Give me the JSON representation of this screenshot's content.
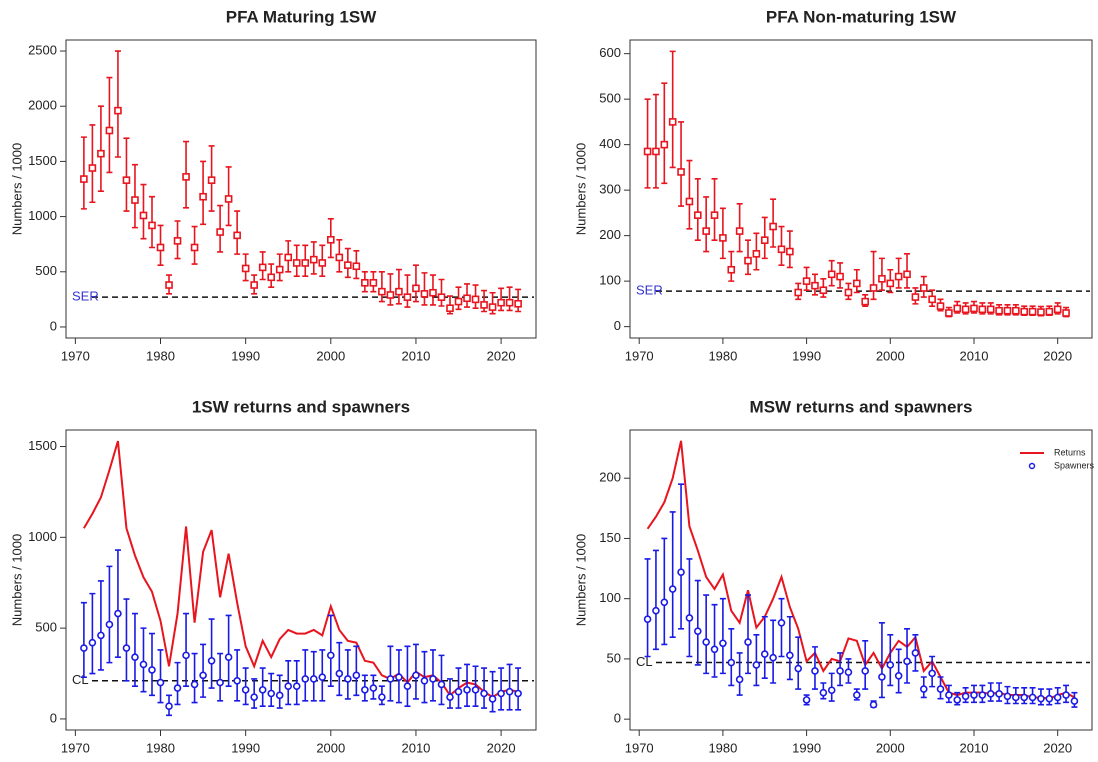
{
  "chart_data": [
    {
      "type": "errorbar",
      "title": "PFA Maturing 1SW",
      "ylabel": "Numbers / 1000",
      "x": [
        1971,
        1972,
        1973,
        1974,
        1975,
        1976,
        1977,
        1978,
        1979,
        1980,
        1981,
        1982,
        1983,
        1984,
        1985,
        1986,
        1987,
        1988,
        1989,
        1990,
        1991,
        1992,
        1993,
        1994,
        1995,
        1996,
        1997,
        1998,
        1999,
        2000,
        2001,
        2002,
        2003,
        2004,
        2005,
        2006,
        2007,
        2008,
        2009,
        2010,
        2011,
        2012,
        2013,
        2014,
        2015,
        2016,
        2017,
        2018,
        2019,
        2020,
        2021,
        2022
      ],
      "xlim": [
        1968.9,
        2024.1
      ],
      "xticks": [
        1970,
        1980,
        1990,
        2000,
        2010,
        2020
      ],
      "ylim": [
        -100,
        2600
      ],
      "yticks": [
        0,
        500,
        1000,
        1500,
        2000,
        2500
      ],
      "reference": {
        "label": "SER",
        "value": 270,
        "label_color": "#3333cc"
      },
      "series": [
        {
          "kind": "errorbar",
          "marker": "square",
          "color": "#e8141e",
          "values": [
            1340,
            1440,
            1570,
            1780,
            1960,
            1330,
            1150,
            1010,
            920,
            720,
            380,
            780,
            1360,
            720,
            1180,
            1330,
            860,
            1160,
            830,
            530,
            380,
            540,
            450,
            520,
            630,
            580,
            580,
            610,
            580,
            790,
            630,
            560,
            550,
            400,
            400,
            320,
            290,
            320,
            270,
            350,
            300,
            310,
            270,
            170,
            230,
            260,
            250,
            200,
            180,
            220,
            220,
            210
          ],
          "lower": [
            1070,
            1130,
            1230,
            1400,
            1540,
            1050,
            900,
            800,
            720,
            560,
            300,
            620,
            1080,
            570,
            930,
            1050,
            680,
            920,
            660,
            420,
            300,
            430,
            360,
            420,
            500,
            460,
            460,
            480,
            460,
            630,
            500,
            450,
            440,
            320,
            320,
            230,
            200,
            210,
            180,
            230,
            200,
            200,
            190,
            120,
            160,
            180,
            170,
            140,
            120,
            150,
            150,
            140
          ],
          "upper": [
            1720,
            1830,
            2000,
            2260,
            2500,
            1710,
            1470,
            1290,
            1180,
            920,
            470,
            960,
            1680,
            910,
            1500,
            1640,
            1100,
            1450,
            1050,
            660,
            470,
            680,
            570,
            660,
            780,
            740,
            740,
            770,
            740,
            980,
            790,
            710,
            690,
            500,
            500,
            500,
            480,
            520,
            470,
            560,
            490,
            470,
            430,
            280,
            360,
            390,
            380,
            330,
            310,
            350,
            360,
            340
          ]
        }
      ]
    },
    {
      "type": "errorbar",
      "title": "PFA Non-maturing 1SW",
      "ylabel": "Numbers / 1000",
      "x": [
        1971,
        1972,
        1973,
        1974,
        1975,
        1976,
        1977,
        1978,
        1979,
        1980,
        1981,
        1982,
        1983,
        1984,
        1985,
        1986,
        1987,
        1988,
        1989,
        1990,
        1991,
        1992,
        1993,
        1994,
        1995,
        1996,
        1997,
        1998,
        1999,
        2000,
        2001,
        2002,
        2003,
        2004,
        2005,
        2006,
        2007,
        2008,
        2009,
        2010,
        2011,
        2012,
        2013,
        2014,
        2015,
        2016,
        2017,
        2018,
        2019,
        2020,
        2021
      ],
      "xlim": [
        1968.9,
        2024.1
      ],
      "xticks": [
        1970,
        1980,
        1990,
        2000,
        2010,
        2020
      ],
      "ylim": [
        -25,
        630
      ],
      "yticks": [
        0,
        100,
        200,
        300,
        400,
        500,
        600
      ],
      "reference": {
        "label": "SER",
        "value": 78,
        "label_color": "#3333cc"
      },
      "series": [
        {
          "kind": "errorbar",
          "marker": "square",
          "color": "#e8141e",
          "values": [
            385,
            385,
            400,
            450,
            340,
            275,
            245,
            210,
            245,
            195,
            125,
            210,
            145,
            160,
            190,
            220,
            170,
            165,
            75,
            100,
            90,
            80,
            115,
            110,
            75,
            95,
            55,
            85,
            105,
            95,
            110,
            115,
            65,
            85,
            60,
            45,
            30,
            40,
            38,
            40,
            38,
            38,
            35,
            35,
            35,
            33,
            33,
            32,
            33,
            38,
            30
          ],
          "lower": [
            305,
            305,
            315,
            350,
            265,
            215,
            190,
            165,
            190,
            150,
            100,
            165,
            115,
            125,
            150,
            175,
            135,
            130,
            60,
            80,
            70,
            65,
            90,
            85,
            60,
            75,
            45,
            60,
            80,
            75,
            85,
            85,
            50,
            65,
            45,
            35,
            22,
            30,
            28,
            30,
            28,
            28,
            26,
            26,
            26,
            25,
            25,
            24,
            25,
            28,
            22
          ],
          "upper": [
            500,
            510,
            535,
            605,
            450,
            365,
            325,
            285,
            325,
            260,
            165,
            270,
            190,
            205,
            240,
            280,
            220,
            210,
            95,
            130,
            115,
            105,
            145,
            140,
            95,
            125,
            70,
            165,
            150,
            125,
            150,
            160,
            85,
            110,
            80,
            60,
            42,
            55,
            52,
            55,
            52,
            52,
            48,
            48,
            48,
            45,
            45,
            44,
            45,
            52,
            42
          ]
        }
      ]
    },
    {
      "type": "line_errorbar",
      "title": "1SW returns and spawners",
      "ylabel": "Numbers / 1000",
      "x": [
        1971,
        1972,
        1973,
        1974,
        1975,
        1976,
        1977,
        1978,
        1979,
        1980,
        1981,
        1982,
        1983,
        1984,
        1985,
        1986,
        1987,
        1988,
        1989,
        1990,
        1991,
        1992,
        1993,
        1994,
        1995,
        1996,
        1997,
        1998,
        1999,
        2000,
        2001,
        2002,
        2003,
        2004,
        2005,
        2006,
        2007,
        2008,
        2009,
        2010,
        2011,
        2012,
        2013,
        2014,
        2015,
        2016,
        2017,
        2018,
        2019,
        2020,
        2021,
        2022
      ],
      "xlim": [
        1968.9,
        2024.1
      ],
      "xticks": [
        1970,
        1980,
        1990,
        2000,
        2010,
        2020
      ],
      "ylim": [
        -61,
        1591
      ],
      "yticks": [
        0,
        500,
        1000,
        1500
      ],
      "reference": {
        "label": "CL",
        "value": 210,
        "label_color": "#222222"
      },
      "series": [
        {
          "kind": "line",
          "color": "#e8141e",
          "values": [
            1050,
            1130,
            1220,
            1370,
            1530,
            1050,
            900,
            780,
            700,
            540,
            290,
            580,
            1060,
            530,
            920,
            1040,
            670,
            910,
            640,
            400,
            290,
            430,
            340,
            440,
            490,
            470,
            470,
            490,
            460,
            620,
            490,
            430,
            420,
            320,
            310,
            240,
            220,
            250,
            200,
            260,
            230,
            240,
            200,
            130,
            170,
            200,
            190,
            150,
            120,
            150,
            160,
            150
          ]
        },
        {
          "kind": "errorbar",
          "marker": "circle",
          "color": "#1a1ae6",
          "values": [
            390,
            420,
            460,
            520,
            580,
            390,
            340,
            300,
            270,
            200,
            70,
            170,
            350,
            190,
            240,
            320,
            200,
            340,
            210,
            160,
            120,
            160,
            140,
            130,
            180,
            180,
            220,
            220,
            230,
            350,
            250,
            220,
            240,
            160,
            170,
            120,
            220,
            230,
            180,
            240,
            210,
            220,
            190,
            120,
            150,
            160,
            160,
            140,
            110,
            140,
            150,
            140
          ],
          "lower": [
            230,
            250,
            270,
            310,
            340,
            210,
            180,
            150,
            130,
            90,
            20,
            80,
            180,
            90,
            120,
            170,
            100,
            180,
            100,
            80,
            60,
            70,
            70,
            60,
            80,
            80,
            100,
            100,
            100,
            180,
            130,
            110,
            130,
            100,
            110,
            80,
            100,
            90,
            70,
            110,
            90,
            100,
            80,
            60,
            60,
            70,
            70,
            60,
            40,
            50,
            50,
            50
          ],
          "upper": [
            640,
            690,
            760,
            840,
            930,
            660,
            580,
            500,
            470,
            380,
            130,
            310,
            580,
            360,
            410,
            550,
            360,
            570,
            380,
            280,
            220,
            280,
            250,
            240,
            320,
            320,
            380,
            370,
            380,
            570,
            420,
            380,
            400,
            240,
            240,
            180,
            400,
            380,
            400,
            410,
            370,
            380,
            350,
            220,
            280,
            300,
            290,
            280,
            260,
            280,
            300,
            280
          ]
        }
      ]
    },
    {
      "type": "line_errorbar",
      "title": "MSW returns and spawners",
      "ylabel": "Numbers / 1000",
      "x": [
        1971,
        1972,
        1973,
        1974,
        1975,
        1976,
        1977,
        1978,
        1979,
        1980,
        1981,
        1982,
        1983,
        1984,
        1985,
        1986,
        1987,
        1988,
        1989,
        1990,
        1991,
        1992,
        1993,
        1994,
        1995,
        1996,
        1997,
        1998,
        1999,
        2000,
        2001,
        2002,
        2003,
        2004,
        2005,
        2006,
        2007,
        2008,
        2009,
        2010,
        2011,
        2012,
        2013,
        2014,
        2015,
        2016,
        2017,
        2018,
        2019,
        2020,
        2021,
        2022
      ],
      "xlim": [
        1968.9,
        2024.1
      ],
      "xticks": [
        1970,
        1980,
        1990,
        2000,
        2010,
        2020
      ],
      "ylim": [
        -9,
        240
      ],
      "yticks": [
        0,
        50,
        100,
        150,
        200
      ],
      "reference": {
        "label": "CL",
        "value": 47,
        "label_color": "#222222"
      },
      "series": [
        {
          "name": "Returns",
          "kind": "line",
          "color": "#e8141e",
          "values": [
            158,
            168,
            180,
            200,
            231,
            160,
            140,
            118,
            108,
            120,
            90,
            80,
            107,
            76,
            85,
            100,
            118,
            93,
            75,
            48,
            55,
            40,
            50,
            48,
            67,
            65,
            45,
            55,
            42,
            55,
            65,
            60,
            68,
            40,
            48,
            35,
            22,
            20,
            22,
            22,
            22,
            21,
            22,
            20,
            20,
            20,
            18,
            18,
            17,
            20,
            22,
            18
          ]
        },
        {
          "name": "Spawners",
          "kind": "errorbar",
          "marker": "circle",
          "color": "#1a1ae6",
          "values": [
            83,
            90,
            97,
            108,
            122,
            84,
            73,
            64,
            58,
            63,
            47,
            33,
            64,
            45,
            54,
            51,
            80,
            53,
            42,
            16,
            40,
            22,
            24,
            40,
            39,
            20,
            40,
            12,
            35,
            45,
            36,
            48,
            55,
            25,
            38,
            25,
            20,
            16,
            19,
            20,
            20,
            21,
            21,
            19,
            18,
            18,
            18,
            17,
            17,
            18,
            20,
            15
          ],
          "lower": [
            52,
            58,
            62,
            68,
            75,
            52,
            45,
            38,
            35,
            38,
            28,
            20,
            38,
            28,
            34,
            30,
            52,
            33,
            25,
            12,
            25,
            17,
            15,
            28,
            30,
            16,
            25,
            10,
            18,
            28,
            22,
            30,
            40,
            18,
            27,
            17,
            14,
            12,
            14,
            14,
            14,
            15,
            15,
            13,
            13,
            13,
            13,
            12,
            12,
            13,
            14,
            10
          ],
          "upper": [
            133,
            140,
            150,
            172,
            195,
            133,
            115,
            103,
            95,
            100,
            75,
            55,
            103,
            70,
            85,
            82,
            100,
            85,
            68,
            20,
            60,
            30,
            38,
            55,
            50,
            25,
            65,
            15,
            80,
            70,
            58,
            75,
            70,
            35,
            52,
            35,
            28,
            22,
            26,
            28,
            28,
            30,
            30,
            27,
            26,
            26,
            26,
            25,
            25,
            26,
            28,
            22
          ]
        }
      ]
    }
  ]
}
